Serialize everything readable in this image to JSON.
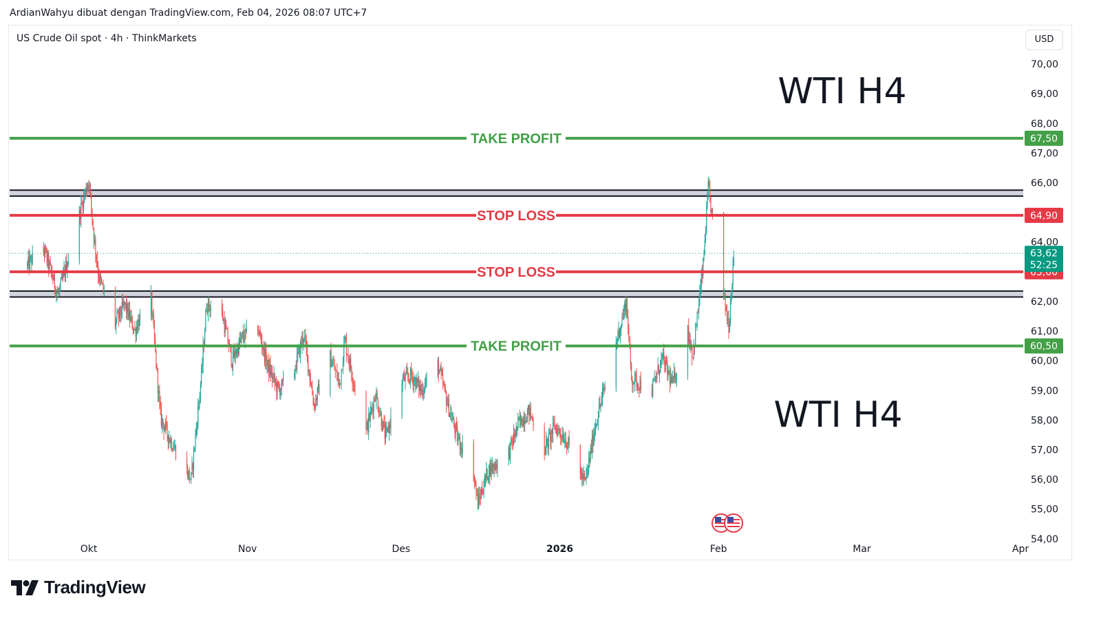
{
  "header": {
    "credit": "ArdianWahyu dibuat dengan TradingView.com, Feb 04, 2026 08:07 UTC+7"
  },
  "symbol": {
    "title": "US Crude Oil spot · 4h · ThinkMarkets",
    "currency": "USD"
  },
  "footer": {
    "brand": "TradingView"
  },
  "colors": {
    "up": "#26a69a",
    "down": "#ef5350",
    "take_profit": "#43a047",
    "stop_loss": "#e53945",
    "zone": "#131722",
    "current_price": "#089981"
  },
  "chart_data": {
    "type": "candlestick",
    "title": "",
    "xlabel": "",
    "ylabel": "",
    "ylim": [
      53.3,
      71.3
    ],
    "x_ticks": [
      "Okt",
      "Nov",
      "Des",
      "2026",
      "Feb",
      "Mar",
      "Apr"
    ],
    "y_ticks": [
      "54,00",
      "55,00",
      "56,00",
      "57,00",
      "58,00",
      "59,00",
      "60,00",
      "61,00",
      "62,00",
      "63,00",
      "64,00",
      "65,00",
      "66,00",
      "67,00",
      "68,00",
      "69,00",
      "70,00"
    ],
    "y_tick_values": [
      54,
      55,
      56,
      57,
      58,
      59,
      60,
      61,
      62,
      63,
      64,
      65,
      66,
      67,
      68,
      69,
      70
    ],
    "annotations": [
      "WTI H4",
      "WTI H4"
    ],
    "levels": [
      {
        "label": "TAKE PROFIT",
        "kind": "take_profit",
        "price": 67.5,
        "tag": "67,50"
      },
      {
        "label": "STOP LOSS",
        "kind": "stop_loss",
        "price": 64.9,
        "tag": "64,90"
      },
      {
        "label": "STOP LOSS",
        "kind": "stop_loss",
        "price": 63.0,
        "tag": "63,00"
      },
      {
        "label": "TAKE PROFIT",
        "kind": "take_profit",
        "price": 60.5,
        "tag": "60,50"
      }
    ],
    "zones": [
      {
        "top": 65.75,
        "bottom": 65.55
      },
      {
        "top": 62.35,
        "bottom": 62.15
      }
    ],
    "current_price": {
      "value": 63.62,
      "label": "63,62",
      "countdown": "52:25"
    },
    "path": [
      [
        "Sep 19",
        63.2
      ],
      [
        "Sep 22",
        63.9
      ],
      [
        "Sep 25",
        62.2
      ],
      [
        "Sep 26",
        62.8
      ],
      [
        "Sep 30",
        65.5
      ],
      [
        "Okt 1",
        66.1
      ],
      [
        "Okt 2",
        64.2
      ],
      [
        "Okt 3",
        62.8
      ],
      [
        "Okt 6",
        61.2
      ],
      [
        "Okt 8",
        61.9
      ],
      [
        "Okt 10",
        61.0
      ],
      [
        "Okt 13",
        62.4
      ],
      [
        "Okt 15",
        58.1
      ],
      [
        "Okt 17",
        57.3
      ],
      [
        "Okt 20",
        56.3
      ],
      [
        "Okt 21",
        56.0
      ],
      [
        "Okt 23",
        59.5
      ],
      [
        "Okt 24",
        61.9
      ],
      [
        "Okt 27",
        61.6
      ],
      [
        "Okt 29",
        60.0
      ],
      [
        "Okt 31",
        60.8
      ],
      [
        "Nov 3",
        61.1
      ],
      [
        "Nov 5",
        59.8
      ],
      [
        "Nov 7",
        59.0
      ],
      [
        "Nov 10",
        59.6
      ],
      [
        "Nov 12",
        60.9
      ],
      [
        "Nov 14",
        58.5
      ],
      [
        "Nov 17",
        60.2
      ],
      [
        "Nov 19",
        59.2
      ],
      [
        "Nov 20",
        60.7
      ],
      [
        "Nov 24",
        57.5
      ],
      [
        "Nov 26",
        58.9
      ],
      [
        "Nov 28",
        57.4
      ],
      [
        "Des 1",
        59.3
      ],
      [
        "Des 3",
        59.5
      ],
      [
        "Des 5",
        59.0
      ],
      [
        "Des 8",
        60.0
      ],
      [
        "Des 10",
        58.6
      ],
      [
        "Des 12",
        57.4
      ],
      [
        "Des 15",
        56.4
      ],
      [
        "Des 16",
        55.2
      ],
      [
        "Des 18",
        56.3
      ],
      [
        "Des 22",
        56.9
      ],
      [
        "Des 24",
        57.9
      ],
      [
        "Des 26",
        58.3
      ],
      [
        "Des 29",
        57.0
      ],
      [
        "Des 31",
        57.8
      ],
      [
        "Jan 2",
        57.4
      ],
      [
        "Jan 5",
        56.2
      ],
      [
        "Jan 6",
        55.9
      ],
      [
        "Jan 8",
        57.9
      ],
      [
        "Jan 12",
        60.6
      ],
      [
        "Jan 14",
        62.0
      ],
      [
        "Jan 15",
        59.4
      ],
      [
        "Jan 19",
        59.0
      ],
      [
        "Jan 21",
        60.1
      ],
      [
        "Jan 23",
        59.2
      ],
      [
        "Jan 26",
        61.0
      ],
      [
        "Jan 27",
        60.2
      ],
      [
        "Jan 29",
        63.2
      ],
      [
        "Jan 30",
        65.8
      ],
      [
        "Feb 2",
        62.2
      ],
      [
        "Feb 3",
        61.2
      ],
      [
        "Feb 4",
        63.62
      ]
    ]
  }
}
